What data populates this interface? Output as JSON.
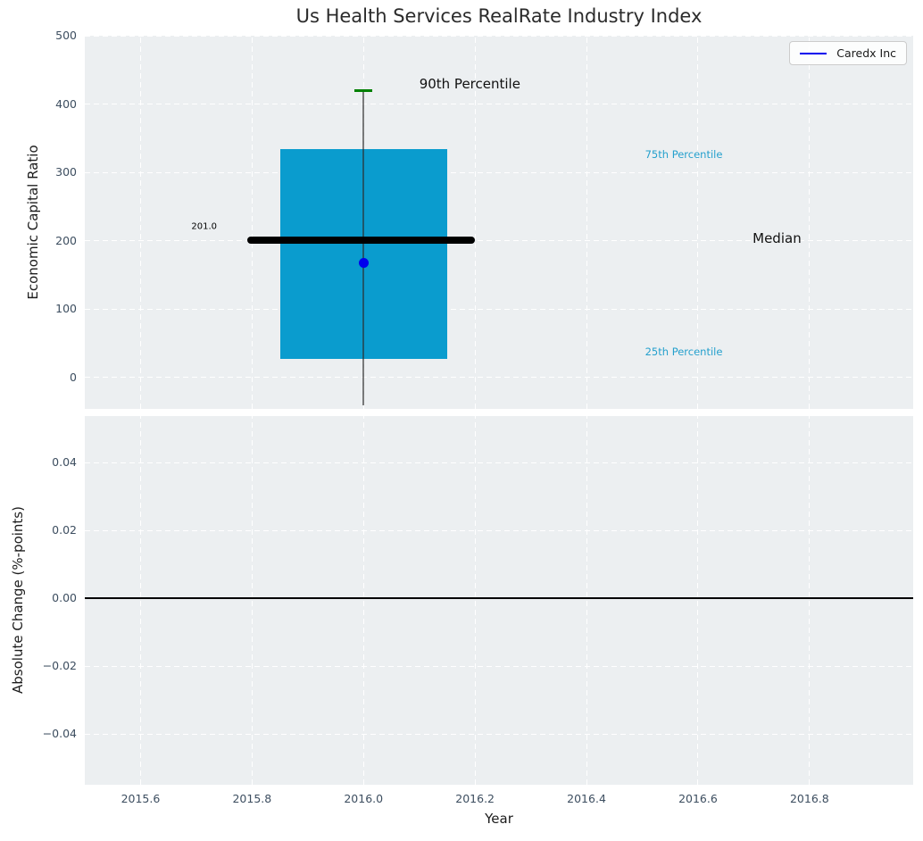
{
  "title": "Us Health Services RealRate Industry Index",
  "legend": {
    "label": "Caredx Inc",
    "line_color": "#0000ee"
  },
  "colors": {
    "plot_bg": "#eceff1",
    "grid": "#ffffff",
    "box_fill": "#0a9cce",
    "median_line": "#000000",
    "whisker": "#555555",
    "whisker_cap": "#008000",
    "company_point": "#0000ee",
    "percentile_label": "#25a0cd",
    "tick_label": "#3d4e60",
    "text": "#1c1c1c"
  },
  "chart_data": [
    {
      "type": "box",
      "title": "Us Health Services RealRate Industry Index",
      "ylabel": "Economic Capital Ratio",
      "xlim": [
        2015.5,
        2016.986
      ],
      "ylim": [
        -45.7,
        500
      ],
      "yticks": [
        0,
        100,
        200,
        300,
        400,
        500
      ],
      "ytick_labels": [
        "0",
        "100",
        "200",
        "300",
        "400",
        "500"
      ],
      "xticks": [
        2015.6,
        2015.8,
        2016.0,
        2016.2,
        2016.4,
        2016.6,
        2016.8
      ],
      "grid": true,
      "legend_position": "upper right",
      "box": {
        "x0": 2015.85,
        "x1": 2016.15,
        "q1_25th_percentile": 27,
        "q3_75th_percentile": 334
      },
      "median": {
        "value": 201,
        "label": "201.0",
        "x0": 2015.792,
        "x1": 2016.2
      },
      "whisker": {
        "x": 2016.0,
        "top_90th_percentile": 420,
        "bottom": -41
      },
      "cap": {
        "x": 2016.0,
        "value": 420,
        "half_width": 0.016
      },
      "point": {
        "series": "Caredx Inc",
        "x": 2016.0,
        "y": 168
      },
      "annotations": [
        {
          "text": "90th Percentile",
          "x": 2016.1,
          "y": 430,
          "color": "#111111",
          "size": 15,
          "align": "left"
        },
        {
          "text": "75th Percentile",
          "x": 2016.505,
          "y": 326,
          "color": "#25a0cd",
          "size": 11.5,
          "align": "left"
        },
        {
          "text": "Median",
          "x": 2016.698,
          "y": 204,
          "color": "#111111",
          "size": 15,
          "align": "left"
        },
        {
          "text": "25th Percentile",
          "x": 2016.505,
          "y": 38,
          "color": "#25a0cd",
          "size": 11.5,
          "align": "left"
        },
        {
          "text": "201.0",
          "x": 2015.737,
          "y": 221,
          "color": "#000000",
          "size": 10,
          "align": "right"
        }
      ]
    },
    {
      "type": "line",
      "ylabel": "Absolute Change (%-points)",
      "xlabel": "Year",
      "xlim": [
        2015.5,
        2016.986
      ],
      "ylim": [
        -0.055,
        0.0537
      ],
      "yticks": [
        0.04,
        0.02,
        0.0,
        -0.02,
        -0.04
      ],
      "ytick_labels": [
        "0.04",
        "0.02",
        "0.00",
        "−0.02",
        "−0.04"
      ],
      "xticks": [
        2015.6,
        2015.8,
        2016.0,
        2016.2,
        2016.4,
        2016.6,
        2016.8
      ],
      "xtick_labels": [
        "2015.6",
        "2015.8",
        "2016.0",
        "2016.2",
        "2016.4",
        "2016.6",
        "2016.8"
      ],
      "grid": true,
      "zero_line": {
        "value": 0.0,
        "color": "#000000"
      },
      "series": []
    }
  ]
}
